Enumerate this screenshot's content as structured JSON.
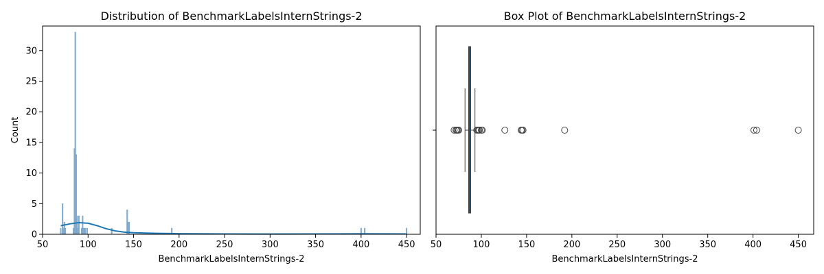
{
  "colors": {
    "bar": "#8bb0cf",
    "kde": "#1f77b4",
    "box": "#2e5f8a",
    "outline": "#404040"
  },
  "chart_data": [
    {
      "type": "bar",
      "title": "Distribution of BenchmarkLabelsInternStrings-2",
      "xlabel": "BenchmarkLabelsInternStrings-2",
      "ylabel": "Count",
      "xlim": [
        50,
        465
      ],
      "ylim": [
        0,
        34
      ],
      "xticks": [
        50,
        100,
        150,
        200,
        250,
        300,
        350,
        400,
        450
      ],
      "yticks": [
        0,
        5,
        10,
        15,
        20,
        25,
        30
      ],
      "bins": [
        {
          "x": 70,
          "count": 1
        },
        {
          "x": 72,
          "count": 5
        },
        {
          "x": 73,
          "count": 1
        },
        {
          "x": 74,
          "count": 2
        },
        {
          "x": 75,
          "count": 1
        },
        {
          "x": 84,
          "count": 1
        },
        {
          "x": 85,
          "count": 14
        },
        {
          "x": 86,
          "count": 33
        },
        {
          "x": 87,
          "count": 13
        },
        {
          "x": 88,
          "count": 3
        },
        {
          "x": 89,
          "count": 1
        },
        {
          "x": 90,
          "count": 3
        },
        {
          "x": 93,
          "count": 1
        },
        {
          "x": 94,
          "count": 3
        },
        {
          "x": 95,
          "count": 1
        },
        {
          "x": 96,
          "count": 1
        },
        {
          "x": 97,
          "count": 1
        },
        {
          "x": 99,
          "count": 1
        },
        {
          "x": 126,
          "count": 1
        },
        {
          "x": 143,
          "count": 4
        },
        {
          "x": 144,
          "count": 2
        },
        {
          "x": 145,
          "count": 2
        },
        {
          "x": 192,
          "count": 1
        },
        {
          "x": 400,
          "count": 1
        },
        {
          "x": 404,
          "count": 1
        },
        {
          "x": 450,
          "count": 1
        }
      ],
      "kde": {
        "x": [
          70,
          80,
          90,
          100,
          110,
          120,
          130,
          140,
          150,
          175,
          200,
          250,
          300,
          350,
          400,
          450
        ],
        "y": [
          1.4,
          1.7,
          1.9,
          1.8,
          1.4,
          0.9,
          0.55,
          0.35,
          0.25,
          0.15,
          0.1,
          0.06,
          0.04,
          0.05,
          0.08,
          0.06
        ]
      }
    },
    {
      "type": "box",
      "title": "Box Plot of BenchmarkLabelsInternStrings-2",
      "xlabel": "BenchmarkLabelsInternStrings-2",
      "xlim": [
        50,
        467
      ],
      "xticks": [
        50,
        100,
        150,
        200,
        250,
        300,
        350,
        400,
        450
      ],
      "whisker_low": 82,
      "q1": 86,
      "median": 87,
      "q3": 88,
      "whisker_high": 93,
      "outliers": [
        70,
        72,
        73,
        74,
        75,
        95,
        96,
        97,
        98,
        100,
        101,
        126,
        144,
        145,
        146,
        192,
        401,
        404,
        450
      ]
    }
  ]
}
